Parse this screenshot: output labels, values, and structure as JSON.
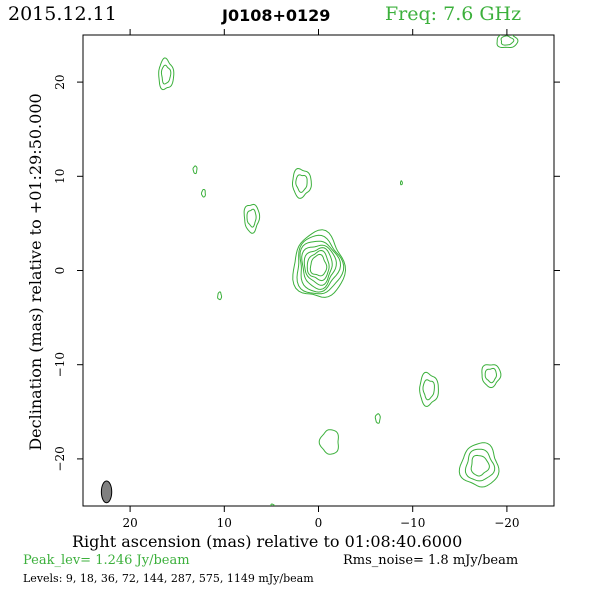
{
  "header": {
    "date": "2015.12.11",
    "source": "J0108+0129",
    "frequency": "Freq: 7.6 GHz"
  },
  "footer": {
    "peak": "Peak_lev=  1.246 Jy/beam",
    "rms": "Rms_noise=  1.8 mJy/beam",
    "levels": "Levels:   9,  18,  36,  72, 144, 287, 575, 1149 mJy/beam"
  },
  "colors": {
    "contour": "#3cb03c",
    "beam": "#808080",
    "axes": "#000000"
  },
  "chart_data": {
    "type": "contour",
    "xlabel": "Right ascension (mas) relative to 01:08:40.6000",
    "ylabel": "Declination (mas) relative to +01:29:50.000",
    "xlim": [
      25,
      -25
    ],
    "ylim": [
      -25,
      25
    ],
    "x_ticks": [
      20,
      10,
      0,
      -10,
      -20
    ],
    "x_tick_labels": [
      "20",
      "10",
      "0",
      "−10",
      "−20"
    ],
    "y_ticks": [
      20,
      10,
      0,
      -10,
      -20
    ],
    "y_tick_labels": [
      "20",
      "10",
      "0",
      "−10",
      "−20"
    ],
    "levels_mJy": [
      9,
      18,
      36,
      72,
      144,
      287,
      575,
      1149
    ],
    "peak_Jy_per_beam": 1.246,
    "rms_noise_mJy_per_beam": 1.8,
    "beam": {
      "x": 22.5,
      "y": -23.5,
      "major": 2.3,
      "minor": 1.1,
      "pa": 0
    },
    "components": [
      {
        "x": 0.0,
        "y": 0.5,
        "rx": 2.7,
        "ry": 3.5,
        "n": 7
      },
      {
        "x": 16.2,
        "y": 20.8,
        "rx": 0.8,
        "ry": 1.6,
        "n": 2
      },
      {
        "x": 1.8,
        "y": 9.3,
        "rx": 1.0,
        "ry": 1.5,
        "n": 2
      },
      {
        "x": 7.1,
        "y": 5.6,
        "rx": 0.8,
        "ry": 1.5,
        "n": 2
      },
      {
        "x": 13.1,
        "y": 10.7,
        "rx": 0.2,
        "ry": 0.4,
        "n": 1
      },
      {
        "x": 12.2,
        "y": 8.2,
        "rx": 0.2,
        "ry": 0.4,
        "n": 1
      },
      {
        "x": 10.5,
        "y": -2.7,
        "rx": 0.2,
        "ry": 0.4,
        "n": 1
      },
      {
        "x": -8.8,
        "y": 9.3,
        "rx": 0.1,
        "ry": 0.2,
        "n": 1
      },
      {
        "x": -11.7,
        "y": -12.6,
        "rx": 1.0,
        "ry": 1.7,
        "n": 2
      },
      {
        "x": -18.3,
        "y": -11.1,
        "rx": 1.0,
        "ry": 1.2,
        "n": 2
      },
      {
        "x": -6.3,
        "y": -15.7,
        "rx": 0.25,
        "ry": 0.5,
        "n": 1
      },
      {
        "x": -1.2,
        "y": -18.2,
        "rx": 1.0,
        "ry": 1.3,
        "n": 1
      },
      {
        "x": -17.1,
        "y": -20.7,
        "rx": 2.0,
        "ry": 2.3,
        "n": 3
      },
      {
        "x": -20.0,
        "y": 24.4,
        "rx": 1.1,
        "ry": 0.8,
        "n": 2
      },
      {
        "x": 4.9,
        "y": -25.0,
        "rx": 0.2,
        "ry": 0.2,
        "n": 1
      }
    ]
  }
}
